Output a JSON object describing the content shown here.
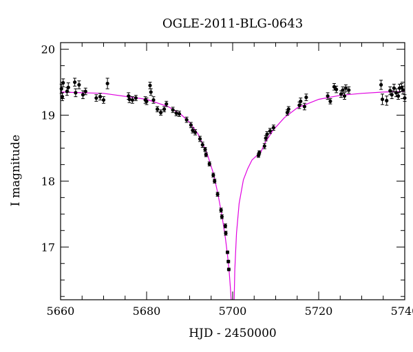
{
  "chart_data": {
    "type": "scatter",
    "title": "OGLE-2011-BLG-0643",
    "xlabel": "HJD - 2450000",
    "ylabel": "I magnitude",
    "xlim": [
      5660,
      5740
    ],
    "ylim": [
      20.1,
      16.2
    ],
    "y_inverted": true,
    "x_ticks": [
      5660,
      5680,
      5700,
      5720,
      5740
    ],
    "y_ticks": [
      17,
      18,
      19,
      20
    ],
    "x_minor_step": 5,
    "y_minor_step": 0.25,
    "grid": false,
    "colors": {
      "points": "#000000",
      "model": "#e000e0",
      "axes": "#000000"
    },
    "series": [
      {
        "kind": "points",
        "points": [
          [
            5660.2,
            19.4,
            0.07
          ],
          [
            5660.4,
            19.28,
            0.06
          ],
          [
            5660.6,
            19.49,
            0.06
          ],
          [
            5661.5,
            19.36,
            0.06
          ],
          [
            5661.8,
            19.42,
            0.07
          ],
          [
            5663.3,
            19.5,
            0.06
          ],
          [
            5663.5,
            19.34,
            0.06
          ],
          [
            5664.3,
            19.46,
            0.06
          ],
          [
            5665.2,
            19.31,
            0.06
          ],
          [
            5665.8,
            19.36,
            0.05
          ],
          [
            5668.3,
            19.26,
            0.05
          ],
          [
            5669.2,
            19.28,
            0.05
          ],
          [
            5670.0,
            19.23,
            0.05
          ],
          [
            5670.9,
            19.48,
            0.08
          ],
          [
            5675.8,
            19.29,
            0.05
          ],
          [
            5676.0,
            19.24,
            0.05
          ],
          [
            5676.7,
            19.23,
            0.05
          ],
          [
            5677.5,
            19.26,
            0.04
          ],
          [
            5679.7,
            19.23,
            0.05
          ],
          [
            5680.0,
            19.21,
            0.05
          ],
          [
            5680.8,
            19.45,
            0.05
          ],
          [
            5681.0,
            19.35,
            0.05
          ],
          [
            5681.6,
            19.23,
            0.05
          ],
          [
            5682.5,
            19.09,
            0.04
          ],
          [
            5683.3,
            19.04,
            0.04
          ],
          [
            5684.1,
            19.09,
            0.04
          ],
          [
            5684.6,
            19.17,
            0.04
          ],
          [
            5686.1,
            19.08,
            0.04
          ],
          [
            5686.9,
            19.03,
            0.04
          ],
          [
            5687.6,
            19.02,
            0.04
          ],
          [
            5689.3,
            18.93,
            0.04
          ],
          [
            5690.3,
            18.85,
            0.04
          ],
          [
            5690.7,
            18.77,
            0.04
          ],
          [
            5691.3,
            18.74,
            0.04
          ],
          [
            5692.4,
            18.64,
            0.04
          ],
          [
            5693.0,
            18.55,
            0.04
          ],
          [
            5693.6,
            18.48,
            0.03
          ],
          [
            5693.8,
            18.4,
            0.03
          ],
          [
            5694.6,
            18.26,
            0.03
          ],
          [
            5695.5,
            18.09,
            0.03
          ],
          [
            5695.8,
            18.0,
            0.03
          ],
          [
            5696.5,
            17.8,
            0.03
          ],
          [
            5697.3,
            17.56,
            0.03
          ],
          [
            5697.5,
            17.46,
            0.03
          ],
          [
            5698.3,
            17.32,
            0.03
          ],
          [
            5698.4,
            17.21,
            0.03
          ],
          [
            5698.8,
            16.92,
            0.02
          ],
          [
            5699.0,
            16.78,
            0.02
          ],
          [
            5699.1,
            16.66,
            0.02
          ],
          [
            5706.0,
            18.39,
            0.03
          ],
          [
            5706.2,
            18.43,
            0.03
          ],
          [
            5707.4,
            18.53,
            0.04
          ],
          [
            5707.7,
            18.65,
            0.04
          ],
          [
            5708.0,
            18.71,
            0.04
          ],
          [
            5708.7,
            18.76,
            0.04
          ],
          [
            5709.5,
            18.81,
            0.04
          ],
          [
            5712.7,
            19.04,
            0.04
          ],
          [
            5713.0,
            19.09,
            0.04
          ],
          [
            5715.5,
            19.15,
            0.05
          ],
          [
            5715.8,
            19.21,
            0.05
          ],
          [
            5716.7,
            19.13,
            0.05
          ],
          [
            5717.1,
            19.27,
            0.05
          ],
          [
            5722.1,
            19.29,
            0.05
          ],
          [
            5722.7,
            19.21,
            0.04
          ],
          [
            5723.6,
            19.43,
            0.05
          ],
          [
            5724.1,
            19.39,
            0.05
          ],
          [
            5725.2,
            19.32,
            0.05
          ],
          [
            5725.6,
            19.38,
            0.05
          ],
          [
            5726.0,
            19.29,
            0.05
          ],
          [
            5726.3,
            19.41,
            0.05
          ],
          [
            5727.0,
            19.38,
            0.05
          ],
          [
            5734.5,
            19.46,
            0.07
          ],
          [
            5734.8,
            19.24,
            0.08
          ],
          [
            5735.8,
            19.22,
            0.07
          ],
          [
            5736.6,
            19.37,
            0.06
          ],
          [
            5737.0,
            19.31,
            0.06
          ],
          [
            5737.5,
            19.41,
            0.06
          ],
          [
            5738.0,
            19.34,
            0.06
          ],
          [
            5738.5,
            19.29,
            0.05
          ],
          [
            5738.8,
            19.41,
            0.06
          ],
          [
            5739.3,
            19.42,
            0.06
          ],
          [
            5739.6,
            19.38,
            0.06
          ],
          [
            5740.0,
            19.26,
            0.05
          ]
        ]
      },
      {
        "kind": "model",
        "points": [
          [
            5660,
            19.35
          ],
          [
            5670,
            19.33
          ],
          [
            5680,
            19.24
          ],
          [
            5685,
            19.13
          ],
          [
            5688,
            19.01
          ],
          [
            5690,
            18.89
          ],
          [
            5692,
            18.71
          ],
          [
            5694,
            18.43
          ],
          [
            5695.5,
            18.12
          ],
          [
            5696.5,
            17.83
          ],
          [
            5697.5,
            17.48
          ],
          [
            5698.3,
            17.14
          ],
          [
            5698.8,
            16.88
          ],
          [
            5699.2,
            16.62
          ],
          [
            5699.5,
            16.35
          ],
          [
            5699.65,
            16.2
          ],
          [
            5700.35,
            16.2
          ],
          [
            5700.5,
            16.65
          ],
          [
            5700.9,
            17.21
          ],
          [
            5701.5,
            17.66
          ],
          [
            5702.5,
            18.02
          ],
          [
            5703.5,
            18.19
          ],
          [
            5704.5,
            18.32
          ],
          [
            5705.5,
            18.38
          ],
          [
            5706.5,
            18.43
          ],
          [
            5707.5,
            18.58
          ],
          [
            5709.5,
            18.78
          ],
          [
            5712.0,
            18.96
          ],
          [
            5715.0,
            19.11
          ],
          [
            5720.0,
            19.24
          ],
          [
            5725.0,
            19.3
          ],
          [
            5730.0,
            19.33
          ],
          [
            5735.0,
            19.35
          ],
          [
            5740.0,
            19.36
          ]
        ]
      }
    ]
  }
}
